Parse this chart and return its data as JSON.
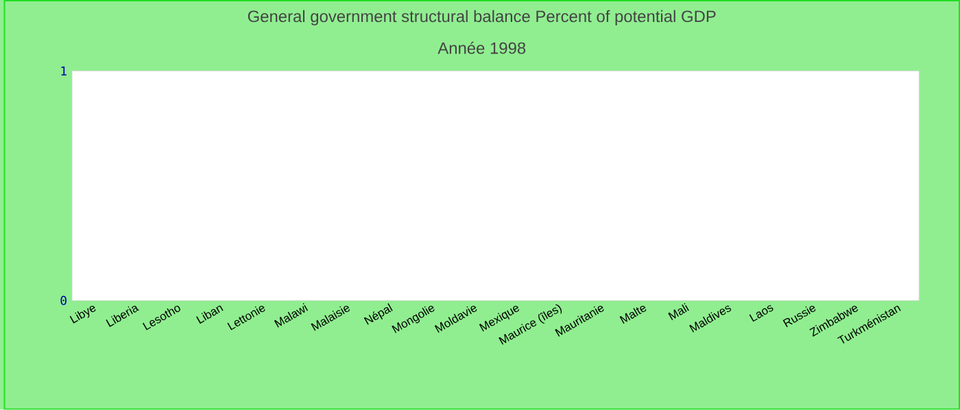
{
  "chart_data": {
    "type": "bar",
    "title": "General government structural balance  Percent of potential GDP",
    "subtitle": "Année 1998",
    "categories": [
      "Libye",
      "Liberia",
      "Lesotho",
      "Liban",
      "Lettonie",
      "Malawi",
      "Malaisie",
      "Népal",
      "Mongolie",
      "Moldavie",
      "Mexique",
      "Maurice (îles)",
      "Mauritanie",
      "Malte",
      "Mali",
      "Maldives",
      "Laos",
      "Russie",
      "Zimbabwe",
      "Turkménistan"
    ],
    "values": [
      null,
      null,
      null,
      null,
      null,
      null,
      null,
      null,
      null,
      null,
      null,
      null,
      null,
      null,
      null,
      null,
      null,
      null,
      null,
      null
    ],
    "ylim": [
      0,
      1
    ],
    "yticks": [
      0,
      1
    ],
    "grid": false
  }
}
